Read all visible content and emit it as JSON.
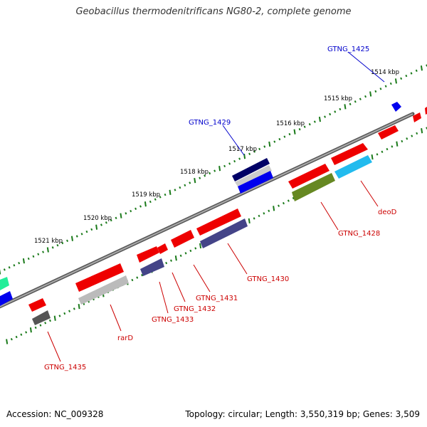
{
  "title": "Geobacillus thermodenitrificans NG80-2, complete genome",
  "footer": {
    "accession": "Accession: NC_009328",
    "summary": "Topology: circular; Length: 3,550,319 bp; Genes: 3,509"
  },
  "ruler": {
    "labels": [
      "1514 kbp",
      "1515 kbp",
      "1516 kbp",
      "1517 kbp",
      "1518 kbp",
      "1519 kbp",
      "1520 kbp",
      "1521 kbp"
    ]
  },
  "gene_labels": {
    "GTNG_1425": "GTNG_1425",
    "GTNG_1429": "GTNG_1429",
    "deoD": "deoD",
    "GTNG_1428": "GTNG_1428",
    "GTNG_1430": "GTNG_1430",
    "GTNG_1431": "GTNG_1431",
    "GTNG_1432": "GTNG_1432",
    "GTNG_1433": "GTNG_1433",
    "rarD": "rarD",
    "GTNG_1435": "GTNG_1435"
  },
  "colors": {
    "backbone": "#888888",
    "ruler": "#1a7a1a",
    "label_blue": "#0000cc",
    "label_red": "#cc0000"
  }
}
